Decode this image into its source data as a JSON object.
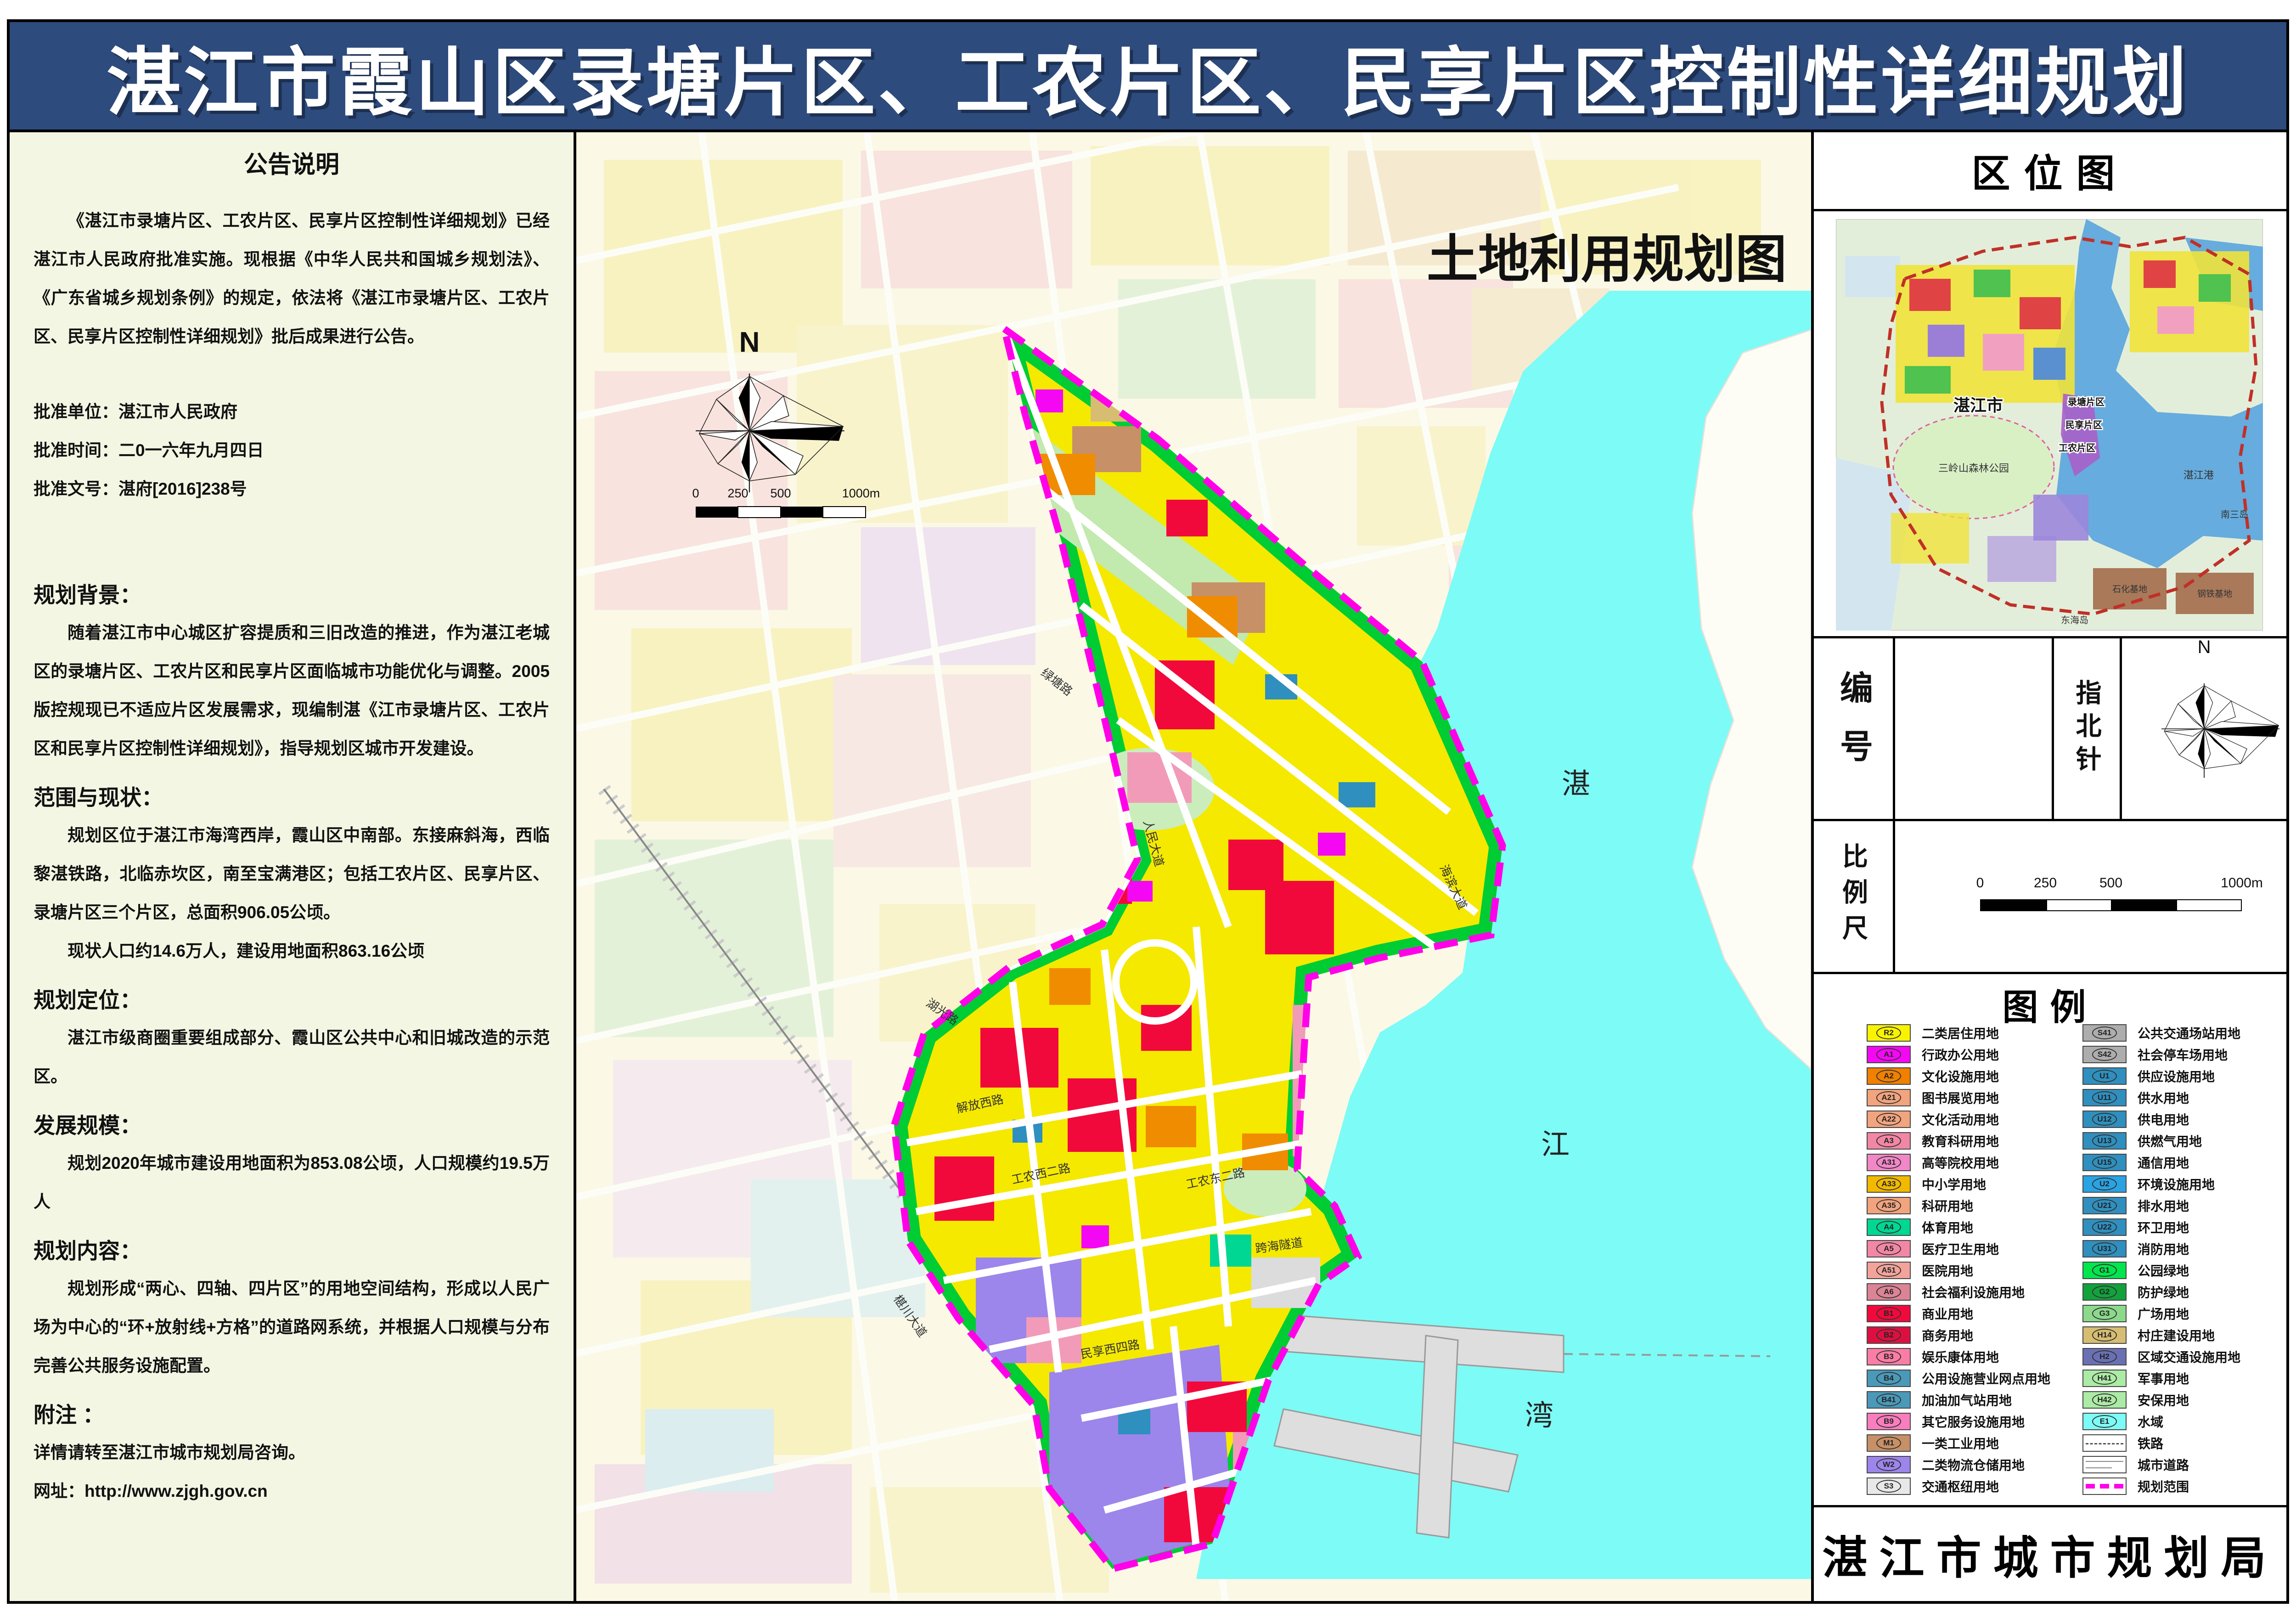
{
  "header": {
    "title": "湛江市霞山区录塘片区、工农片区、民享片区控制性详细规划"
  },
  "colors": {
    "banner": "#2D4B7D",
    "panel_bg": "#F3F6E3",
    "boundary": "#FF00E8",
    "water": "#7DFBF6",
    "residential": "#F5E900"
  },
  "left_panel": {
    "title": "公告说明",
    "intro": "《湛江市录塘片区、工农片区、民享片区控制性详细规划》已经湛江市人民政府批准实施。现根据《中华人民共和国城乡规划法》、《广东省城乡规划条例》的规定，依法将《湛江市录塘片区、工农片区、民享片区控制性详细规划》批后成果进行公告。",
    "approval_lines": [
      "批准单位：湛江市人民政府",
      "批准时间：二0一六年九月四日",
      "批准文号：湛府[2016]238号"
    ],
    "sections": [
      {
        "heading": "规划背景：",
        "paragraphs": [
          {
            "text": "随着湛江市中心城区扩容提质和三旧改造的推进，作为湛江老城区的录塘片区、工农片区和民享片区面临城市功能优化与调整。2005版控规现已不适应片区发展需求，现编制湛《江市录塘片区、工农片区和民享片区控制性详细规划》，指导规划区城市开发建设。",
            "indent": true
          }
        ]
      },
      {
        "heading": "范围与现状：",
        "paragraphs": [
          {
            "text": "规划区位于湛江市海湾西岸，霞山区中南部。东接麻斜海，西临黎湛铁路，北临赤坎区，南至宝满港区；包括工农片区、民享片区、录塘片区三个片区，总面积906.05公顷。",
            "indent": true
          },
          {
            "text": "现状人口约14.6万人，建设用地面积863.16公顷",
            "indent": true
          }
        ]
      },
      {
        "heading": "规划定位：",
        "paragraphs": [
          {
            "text": "湛江市级商圈重要组成部分、霞山区公共中心和旧城改造的示范区。",
            "indent": true
          }
        ]
      },
      {
        "heading": "发展规模：",
        "paragraphs": [
          {
            "text": "规划2020年城市建设用地面积为853.08公顷，人口规模约19.5万人",
            "indent": true
          }
        ]
      },
      {
        "heading": "规划内容：",
        "paragraphs": [
          {
            "text": "规划形成“两心、四轴、四片区”的用地空间结构，形成以人民广场为中心的“环+放射线+方格”的道路网系统，并根据人口规模与分布完善公共服务设施配置。",
            "indent": true
          }
        ]
      },
      {
        "heading": "附注 ：",
        "paragraphs": [
          {
            "text": "详情请转至湛江市城市规划局咨询。",
            "indent": false
          },
          {
            "text": "网址：http://www.zjgh.gov.cn",
            "indent": false
          }
        ]
      }
    ]
  },
  "map": {
    "title": "土地利用规划图",
    "bay_chars": [
      "湛",
      "江",
      "湾"
    ],
    "north_label": "N",
    "scale_ticks": [
      "0",
      "250",
      "500",
      "1000m"
    ],
    "road_labels": [
      "人民大道",
      "解放西路",
      "工农西二路",
      "工农东二路",
      "民享西四路",
      "海滨大道",
      "绿塘路",
      "椹川大道",
      "湖光路",
      "跨海隧道"
    ]
  },
  "right_panel": {
    "location_title": "区位图",
    "location_labels": {
      "city": "湛江市",
      "lutang": "录塘片区",
      "minxiang": "民享片区",
      "gongnong": "工农片区",
      "forest": "三岭山森林公园",
      "port": "湛江港",
      "petrochem": "石化基地",
      "steel": "钢铁基地",
      "nansan": "南三岛",
      "donghai": "东海岛"
    },
    "number_label": "编号",
    "compass_label": "指北针",
    "compass_n": "N",
    "scale_label": "比例尺",
    "scale_ticks": [
      "0",
      "250",
      "500",
      "1000m"
    ],
    "legend_title": "图例",
    "legend_left": [
      {
        "code": "R2",
        "label": "二类居住用地",
        "color": "#FAF300"
      },
      {
        "code": "A1",
        "label": "行政办公用地",
        "color": "#F408F4"
      },
      {
        "code": "A2",
        "label": "文化设施用地",
        "color": "#F08000"
      },
      {
        "code": "A21",
        "label": "图书展览用地",
        "color": "#F2A47E"
      },
      {
        "code": "A22",
        "label": "文化活动用地",
        "color": "#F2A47E"
      },
      {
        "code": "A3",
        "label": "教育科研用地",
        "color": "#F287A5"
      },
      {
        "code": "A31",
        "label": "高等院校用地",
        "color": "#F287C8"
      },
      {
        "code": "A33",
        "label": "中小学用地",
        "color": "#F2B900"
      },
      {
        "code": "A35",
        "label": "科研用地",
        "color": "#F2A47E"
      },
      {
        "code": "A4",
        "label": "体育用地",
        "color": "#00D793"
      },
      {
        "code": "A5",
        "label": "医疗卫生用地",
        "color": "#F287A5"
      },
      {
        "code": "A51",
        "label": "医院用地",
        "color": "#F2A49B"
      },
      {
        "code": "A6",
        "label": "社会福利设施用地",
        "color": "#DB8496"
      },
      {
        "code": "B1",
        "label": "商业用地",
        "color": "#F2093C"
      },
      {
        "code": "B2",
        "label": "商务用地",
        "color": "#DC1040"
      },
      {
        "code": "B3",
        "label": "娱乐康体用地",
        "color": "#FA7DA5"
      },
      {
        "code": "B4",
        "label": "公用设施营业网点用地",
        "color": "#4A99B9"
      },
      {
        "code": "B41",
        "label": "加油加气站用地",
        "color": "#4A99B9"
      },
      {
        "code": "B9",
        "label": "其它服务设施用地",
        "color": "#FA7DBE"
      },
      {
        "code": "M1",
        "label": "一类工业用地",
        "color": "#C79067"
      },
      {
        "code": "W2",
        "label": "二类物流仓储用地",
        "color": "#9C85EB"
      },
      {
        "code": "S3",
        "label": "交通枢纽用地",
        "color": "#E8E8E8"
      }
    ],
    "legend_right": [
      {
        "code": "S41",
        "label": "公共交通场站用地",
        "color": "#ADADAD"
      },
      {
        "code": "S42",
        "label": "社会停车场用地",
        "color": "#ADADAD"
      },
      {
        "code": "U1",
        "label": "供应设施用地",
        "color": "#2F8FBE"
      },
      {
        "code": "U11",
        "label": "供水用地",
        "color": "#2F8FBE"
      },
      {
        "code": "U12",
        "label": "供电用地",
        "color": "#2F8FBE"
      },
      {
        "code": "U13",
        "label": "供燃气用地",
        "color": "#2F8FBE"
      },
      {
        "code": "U15",
        "label": "通信用地",
        "color": "#2F8FBE"
      },
      {
        "code": "U2",
        "label": "环境设施用地",
        "color": "#2AA3E3"
      },
      {
        "code": "U21",
        "label": "排水用地",
        "color": "#2F8FBE"
      },
      {
        "code": "U22",
        "label": "环卫用地",
        "color": "#2F8FBE"
      },
      {
        "code": "U31",
        "label": "消防用地",
        "color": "#2F8FBE"
      },
      {
        "code": "G1",
        "label": "公园绿地",
        "color": "#00E64C"
      },
      {
        "code": "G2",
        "label": "防护绿地",
        "color": "#12A23C"
      },
      {
        "code": "G3",
        "label": "广场用地",
        "color": "#8CD98C"
      },
      {
        "code": "H14",
        "label": "村庄建设用地",
        "color": "#D6BD72"
      },
      {
        "code": "H2",
        "label": "区域交通设施用地",
        "color": "#6A70B3"
      },
      {
        "code": "H41",
        "label": "军事用地",
        "color": "#ACEBA5"
      },
      {
        "code": "H42",
        "label": "安保用地",
        "color": "#ACEBA5"
      },
      {
        "code": "E1",
        "label": "水域",
        "color": "#7DFBF6"
      },
      {
        "type": "railway",
        "label": "铁路"
      },
      {
        "type": "road",
        "label": "城市道路"
      },
      {
        "type": "boundary",
        "label": "规划范围"
      }
    ],
    "bureau": "湛江市城市规划局"
  }
}
